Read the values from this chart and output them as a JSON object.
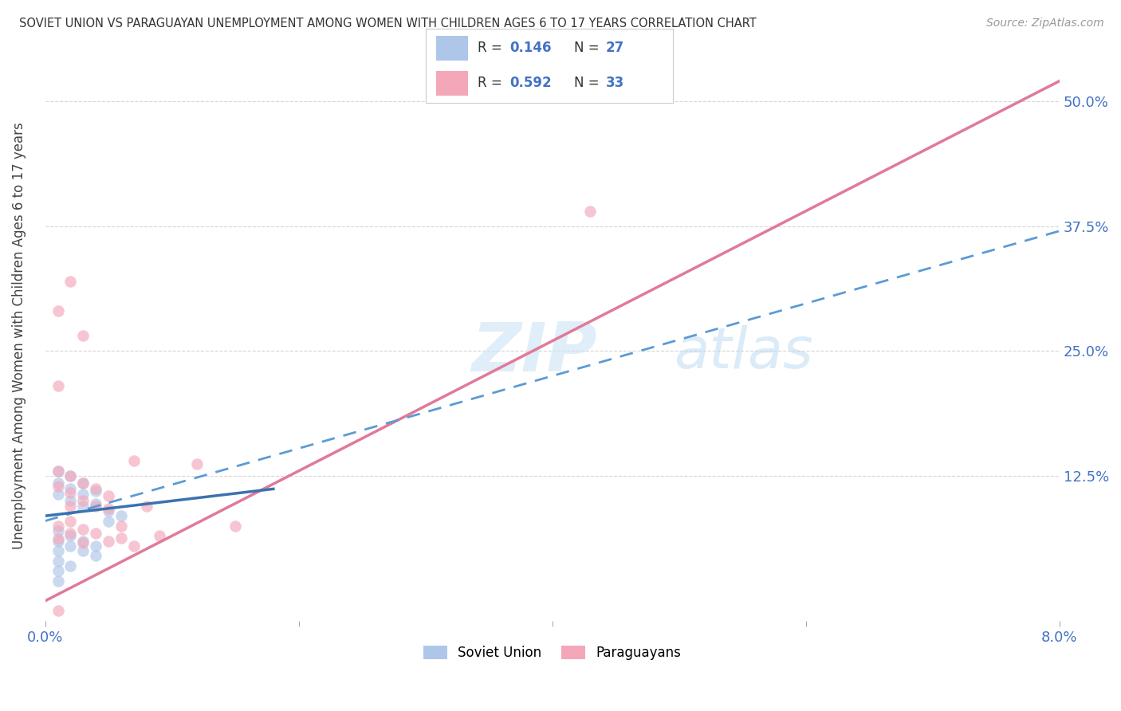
{
  "title": "SOVIET UNION VS PARAGUAYAN UNEMPLOYMENT AMONG WOMEN WITH CHILDREN AGES 6 TO 17 YEARS CORRELATION CHART",
  "source": "Source: ZipAtlas.com",
  "ylabel": "Unemployment Among Women with Children Ages 6 to 17 years",
  "xlim": [
    0.0,
    0.08
  ],
  "ylim": [
    -0.02,
    0.55
  ],
  "ytick_labels": [
    "12.5%",
    "25.0%",
    "37.5%",
    "50.0%"
  ],
  "ytick_vals": [
    0.125,
    0.25,
    0.375,
    0.5
  ],
  "background_color": "#ffffff",
  "grid_color": "#cccccc",
  "soviet_color": "#aec6e8",
  "paraguayan_color": "#f4a7b9",
  "soviet_line_color": "#5b9bd5",
  "paraguayan_line_color": "#e07a98",
  "watermark_zip": "ZIP",
  "watermark_atlas": "atlas",
  "soviet_scatter": [
    [
      0.001,
      0.13
    ],
    [
      0.001,
      0.118
    ],
    [
      0.001,
      0.107
    ],
    [
      0.002,
      0.125
    ],
    [
      0.002,
      0.112
    ],
    [
      0.002,
      0.1
    ],
    [
      0.003,
      0.118
    ],
    [
      0.003,
      0.107
    ],
    [
      0.003,
      0.095
    ],
    [
      0.004,
      0.11
    ],
    [
      0.004,
      0.097
    ],
    [
      0.005,
      0.09
    ],
    [
      0.005,
      0.08
    ],
    [
      0.006,
      0.085
    ],
    [
      0.001,
      0.07
    ],
    [
      0.001,
      0.06
    ],
    [
      0.001,
      0.05
    ],
    [
      0.002,
      0.065
    ],
    [
      0.002,
      0.055
    ],
    [
      0.003,
      0.06
    ],
    [
      0.003,
      0.05
    ],
    [
      0.004,
      0.055
    ],
    [
      0.004,
      0.045
    ],
    [
      0.001,
      0.04
    ],
    [
      0.001,
      0.03
    ],
    [
      0.002,
      0.035
    ],
    [
      0.001,
      0.02
    ]
  ],
  "paraguayan_scatter": [
    [
      0.001,
      0.13
    ],
    [
      0.001,
      0.115
    ],
    [
      0.002,
      0.125
    ],
    [
      0.002,
      0.108
    ],
    [
      0.002,
      0.095
    ],
    [
      0.003,
      0.118
    ],
    [
      0.003,
      0.1
    ],
    [
      0.004,
      0.112
    ],
    [
      0.004,
      0.095
    ],
    [
      0.005,
      0.105
    ],
    [
      0.005,
      0.092
    ],
    [
      0.001,
      0.075
    ],
    [
      0.001,
      0.062
    ],
    [
      0.002,
      0.08
    ],
    [
      0.002,
      0.068
    ],
    [
      0.003,
      0.072
    ],
    [
      0.003,
      0.058
    ],
    [
      0.004,
      0.068
    ],
    [
      0.005,
      0.06
    ],
    [
      0.007,
      0.14
    ],
    [
      0.008,
      0.095
    ],
    [
      0.012,
      0.137
    ],
    [
      0.001,
      0.29
    ],
    [
      0.002,
      0.32
    ],
    [
      0.001,
      0.215
    ],
    [
      0.003,
      0.265
    ],
    [
      0.043,
      0.39
    ],
    [
      0.001,
      -0.01
    ],
    [
      0.006,
      0.075
    ],
    [
      0.006,
      0.063
    ],
    [
      0.007,
      0.055
    ],
    [
      0.009,
      0.065
    ],
    [
      0.015,
      0.075
    ]
  ],
  "soviet_line_x": [
    0.0,
    0.025
  ],
  "soviet_line_y": [
    0.085,
    0.12
  ],
  "para_line_x": [
    0.0,
    0.08
  ],
  "para_line_y": [
    0.0,
    0.52
  ]
}
